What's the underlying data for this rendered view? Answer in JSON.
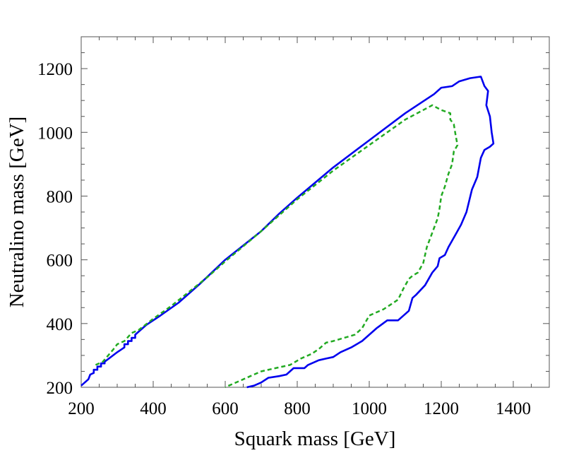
{
  "chart_data": {
    "type": "line",
    "title": "",
    "xlabel": "Squark  mass [GeV]",
    "ylabel": "Neutralino mass [GeV]",
    "xlim": [
      200,
      1500
    ],
    "ylim": [
      200,
      1300
    ],
    "xticks": [
      200,
      400,
      600,
      800,
      1000,
      1200,
      1400
    ],
    "yticks": [
      200,
      400,
      600,
      800,
      1000,
      1200
    ],
    "grid": false,
    "legend": "none",
    "series": [
      {
        "style": "solid",
        "color": "#0000ee",
        "points": [
          [
            200,
            205
          ],
          [
            210,
            215
          ],
          [
            220,
            225
          ],
          [
            225,
            240
          ],
          [
            235,
            245
          ],
          [
            235,
            255
          ],
          [
            245,
            255
          ],
          [
            245,
            265
          ],
          [
            255,
            265
          ],
          [
            255,
            275
          ],
          [
            265,
            275
          ],
          [
            265,
            280
          ],
          [
            300,
            310
          ],
          [
            320,
            325
          ],
          [
            320,
            335
          ],
          [
            330,
            335
          ],
          [
            330,
            345
          ],
          [
            340,
            345
          ],
          [
            340,
            355
          ],
          [
            350,
            355
          ],
          [
            350,
            365
          ],
          [
            360,
            375
          ],
          [
            380,
            395
          ],
          [
            420,
            425
          ],
          [
            470,
            465
          ],
          [
            530,
            525
          ],
          [
            600,
            600
          ],
          [
            700,
            690
          ],
          [
            750,
            745
          ],
          [
            800,
            795
          ],
          [
            900,
            890
          ],
          [
            1000,
            975
          ],
          [
            1100,
            1060
          ],
          [
            1180,
            1120
          ],
          [
            1200,
            1140
          ],
          [
            1230,
            1145
          ],
          [
            1250,
            1160
          ],
          [
            1280,
            1170
          ],
          [
            1310,
            1175
          ],
          [
            1320,
            1145
          ],
          [
            1330,
            1130
          ],
          [
            1325,
            1085
          ],
          [
            1335,
            1050
          ],
          [
            1340,
            1000
          ],
          [
            1345,
            965
          ],
          [
            1335,
            955
          ],
          [
            1320,
            945
          ],
          [
            1310,
            920
          ],
          [
            1300,
            860
          ],
          [
            1285,
            820
          ],
          [
            1270,
            750
          ],
          [
            1255,
            710
          ],
          [
            1240,
            680
          ],
          [
            1230,
            660
          ],
          [
            1220,
            640
          ],
          [
            1210,
            615
          ],
          [
            1195,
            605
          ],
          [
            1190,
            580
          ],
          [
            1175,
            560
          ],
          [
            1155,
            520
          ],
          [
            1130,
            490
          ],
          [
            1120,
            480
          ],
          [
            1110,
            440
          ],
          [
            1100,
            430
          ],
          [
            1080,
            410
          ],
          [
            1050,
            410
          ],
          [
            1020,
            385
          ],
          [
            980,
            345
          ],
          [
            950,
            325
          ],
          [
            920,
            310
          ],
          [
            900,
            295
          ],
          [
            880,
            290
          ],
          [
            860,
            285
          ],
          [
            830,
            270
          ],
          [
            820,
            260
          ],
          [
            790,
            260
          ],
          [
            770,
            240
          ],
          [
            750,
            235
          ],
          [
            720,
            230
          ],
          [
            700,
            215
          ],
          [
            680,
            205
          ],
          [
            660,
            200
          ]
        ]
      },
      {
        "style": "dashed",
        "color": "#22aa22",
        "points": [
          [
            240,
            270
          ],
          [
            260,
            280
          ],
          [
            290,
            320
          ],
          [
            300,
            335
          ],
          [
            320,
            345
          ],
          [
            340,
            370
          ],
          [
            360,
            380
          ],
          [
            400,
            415
          ],
          [
            450,
            455
          ],
          [
            500,
            500
          ],
          [
            550,
            545
          ],
          [
            600,
            595
          ],
          [
            700,
            690
          ],
          [
            800,
            790
          ],
          [
            900,
            880
          ],
          [
            1000,
            960
          ],
          [
            1100,
            1040
          ],
          [
            1150,
            1070
          ],
          [
            1175,
            1085
          ],
          [
            1200,
            1070
          ],
          [
            1225,
            1060
          ],
          [
            1225,
            1040
          ],
          [
            1235,
            1025
          ],
          [
            1240,
            990
          ],
          [
            1245,
            960
          ],
          [
            1235,
            940
          ],
          [
            1230,
            900
          ],
          [
            1220,
            870
          ],
          [
            1210,
            830
          ],
          [
            1200,
            800
          ],
          [
            1195,
            760
          ],
          [
            1190,
            730
          ],
          [
            1180,
            700
          ],
          [
            1170,
            670
          ],
          [
            1160,
            640
          ],
          [
            1150,
            590
          ],
          [
            1135,
            560
          ],
          [
            1120,
            550
          ],
          [
            1110,
            540
          ],
          [
            1095,
            510
          ],
          [
            1080,
            475
          ],
          [
            1060,
            460
          ],
          [
            1040,
            445
          ],
          [
            1000,
            425
          ],
          [
            980,
            385
          ],
          [
            960,
            365
          ],
          [
            930,
            355
          ],
          [
            900,
            345
          ],
          [
            880,
            340
          ],
          [
            860,
            320
          ],
          [
            840,
            305
          ],
          [
            810,
            290
          ],
          [
            780,
            270
          ],
          [
            740,
            260
          ],
          [
            700,
            250
          ],
          [
            670,
            235
          ],
          [
            640,
            220
          ],
          [
            610,
            205
          ],
          [
            600,
            200
          ]
        ]
      }
    ]
  }
}
